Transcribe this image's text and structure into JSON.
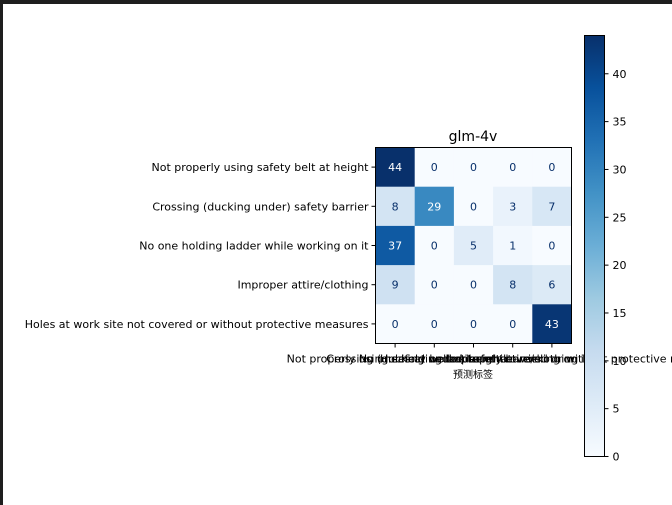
{
  "chart_data": {
    "type": "heatmap",
    "title": "glm-4v",
    "xlabel": "预测标签",
    "ylabel": "",
    "row_labels": [
      "Not properly using safety belt at height",
      "Crossing (ducking under) safety barrier",
      "No one holding ladder while working on it",
      "Improper attire/clothing",
      "Holes at work site not covered or without protective measures"
    ],
    "col_labels": [
      "Not properly using safety belt at height",
      "Crossing (ducking under) safety barrier",
      "No one holding ladder while working on it",
      "Improper attire/clothing",
      "Holes at work site not covered or without protective measures"
    ],
    "values": [
      [
        44,
        0,
        0,
        0,
        0
      ],
      [
        8,
        29,
        0,
        3,
        7
      ],
      [
        37,
        0,
        5,
        1,
        0
      ],
      [
        9,
        0,
        0,
        8,
        6
      ],
      [
        0,
        0,
        0,
        0,
        43
      ]
    ],
    "colorbar": {
      "min": 0,
      "max": 44,
      "ticks": [
        0,
        5,
        10,
        15,
        20,
        25,
        30,
        35,
        40
      ]
    },
    "colormap": "Blues",
    "grid": false
  }
}
